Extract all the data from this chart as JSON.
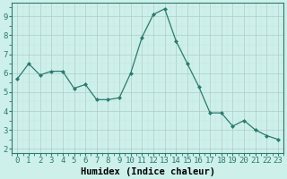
{
  "x": [
    0,
    1,
    2,
    3,
    4,
    5,
    6,
    7,
    8,
    9,
    10,
    11,
    12,
    13,
    14,
    15,
    16,
    17,
    18,
    19,
    20,
    21,
    22,
    23
  ],
  "y": [
    5.7,
    6.5,
    5.9,
    6.1,
    6.1,
    5.2,
    5.4,
    4.6,
    4.6,
    4.7,
    6.0,
    7.9,
    9.1,
    9.4,
    7.7,
    6.5,
    5.3,
    3.9,
    3.9,
    3.2,
    3.5,
    3.0,
    2.7,
    2.5
  ],
  "line_color": "#2d7a6e",
  "marker": "D",
  "marker_size": 2.0,
  "bg_color": "#cdf0ea",
  "grid_major_color": "#b0cdc8",
  "grid_minor_color": "#c8e5e0",
  "xlabel": "Humidex (Indice chaleur)",
  "xlim": [
    -0.5,
    23.5
  ],
  "ylim": [
    1.8,
    9.7
  ],
  "yticks": [
    2,
    3,
    4,
    5,
    6,
    7,
    8,
    9
  ],
  "xtick_labels": [
    "0",
    "1",
    "2",
    "3",
    "4",
    "5",
    "6",
    "7",
    "8",
    "9",
    "10",
    "11",
    "12",
    "13",
    "14",
    "15",
    "16",
    "17",
    "18",
    "19",
    "20",
    "21",
    "22",
    "23"
  ],
  "xlabel_fontsize": 7.5,
  "tick_fontsize": 6.5
}
